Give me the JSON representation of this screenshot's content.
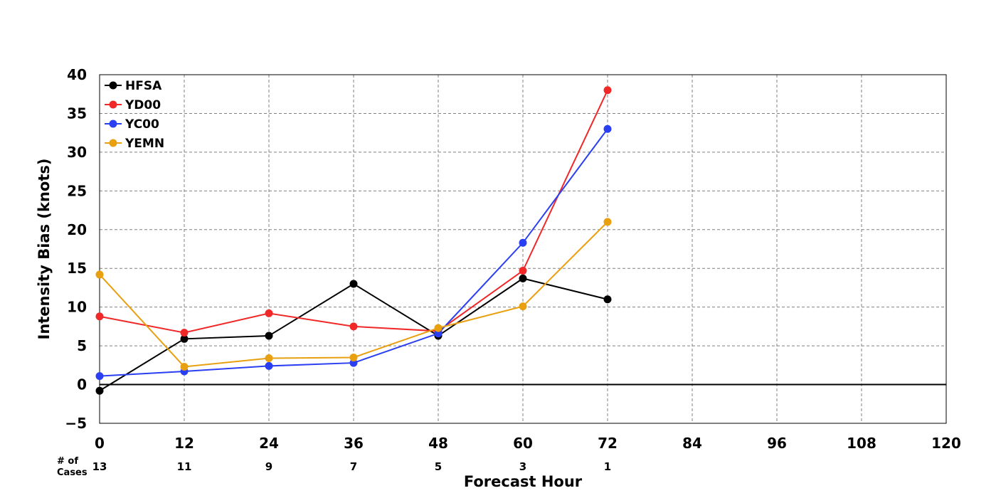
{
  "chart_data": {
    "type": "line",
    "title": "",
    "xlabel": "Forecast Hour",
    "ylabel": "Intensity Bias (knots)",
    "xlim": [
      0,
      120
    ],
    "ylim": [
      -5,
      40
    ],
    "x_ticks": [
      0,
      12,
      24,
      36,
      48,
      60,
      72,
      84,
      96,
      108,
      120
    ],
    "y_ticks": [
      -5,
      0,
      5,
      10,
      15,
      20,
      25,
      30,
      35,
      40
    ],
    "y_tick_labels": [
      "−5",
      "0",
      "5",
      "10",
      "15",
      "20",
      "25",
      "30",
      "35",
      "40"
    ],
    "grid": true,
    "legend_position": "top-left",
    "zero_line": 0,
    "x": [
      0,
      12,
      24,
      36,
      48,
      60,
      72
    ],
    "series": [
      {
        "name": "HFSA",
        "color": "#000000",
        "values": [
          -0.8,
          5.9,
          6.3,
          13.0,
          6.3,
          13.7,
          11.0
        ]
      },
      {
        "name": "YD00",
        "color": "#f02828",
        "values": [
          8.8,
          6.7,
          9.2,
          7.5,
          6.9,
          14.7,
          38.0
        ]
      },
      {
        "name": "YC00",
        "color": "#2a3ff2",
        "values": [
          1.1,
          1.7,
          2.4,
          2.8,
          6.6,
          18.3,
          33.0
        ]
      },
      {
        "name": "YEMN",
        "color": "#e8a010",
        "values": [
          14.2,
          2.3,
          3.4,
          3.5,
          7.3,
          10.1,
          21.0
        ]
      }
    ],
    "cases": {
      "label_line1": "# of",
      "label_line2": "Cases",
      "x": [
        0,
        12,
        24,
        36,
        48,
        60,
        72
      ],
      "counts": [
        "13",
        "11",
        "9",
        "7",
        "5",
        "3",
        "1"
      ]
    }
  }
}
